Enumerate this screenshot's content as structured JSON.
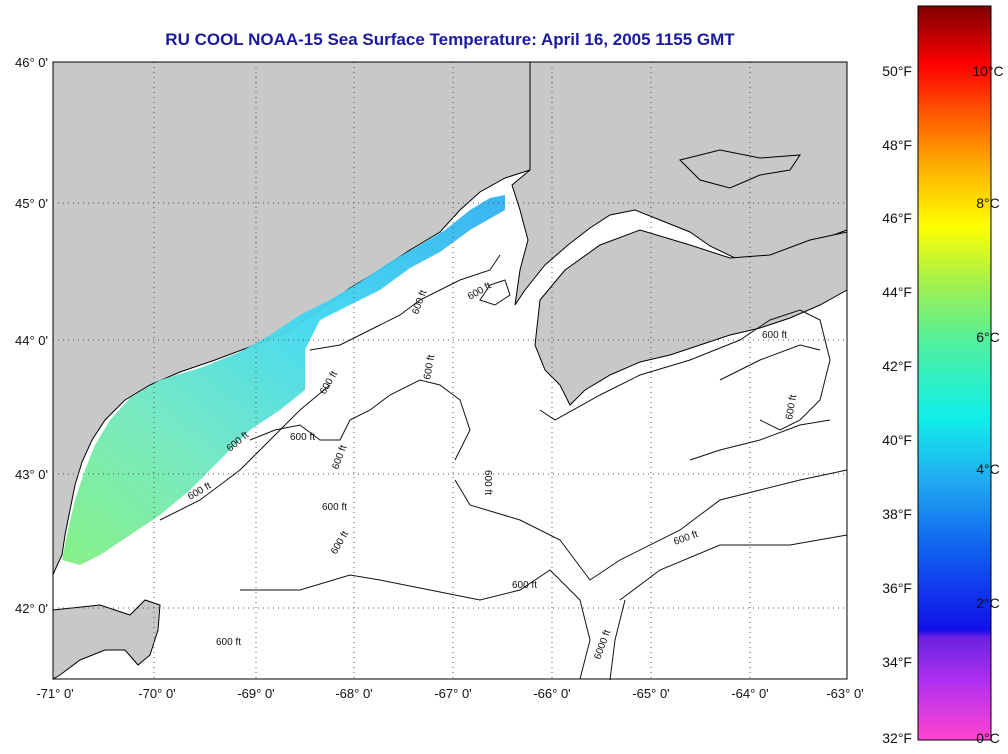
{
  "title": "RU COOL  NOAA-15  Sea Surface Temperature:  April 16, 2005 1155 GMT",
  "colors": {
    "land": "#c8c8c8",
    "ocean": "#ffffff",
    "coast": "#000000",
    "grid": "#555555"
  },
  "map": {
    "lon_ticks": [
      "-71° 0'",
      "-70° 0'",
      "-69° 0'",
      "-68° 0'",
      "-67° 0'",
      "-66° 0'",
      "-65° 0'",
      "-64° 0'",
      "-63° 0'"
    ],
    "lat_ticks": [
      "46° 0'",
      "45° 0'",
      "44° 0'",
      "43° 0'",
      "42° 0'"
    ],
    "contour_labels": [
      "600 ft",
      "600 ft",
      "600 ft",
      "600 ft",
      "600 ft",
      "600 ft",
      "600 ft",
      "600 ft",
      "600 ft",
      "600 ft",
      "600 ft",
      "600 ft",
      "600 ft",
      "600 ft",
      "600 ft",
      "600 ft",
      "6000 ft"
    ]
  },
  "colorbar": {
    "fahrenheit_labels": [
      "50°F",
      "48°F",
      "46°F",
      "44°F",
      "42°F",
      "40°F",
      "38°F",
      "36°F",
      "34°F",
      "32°F"
    ],
    "celsius_labels": [
      "10°C",
      "8°C",
      "6°C",
      "4°C",
      "2°C",
      "0°C"
    ]
  }
}
